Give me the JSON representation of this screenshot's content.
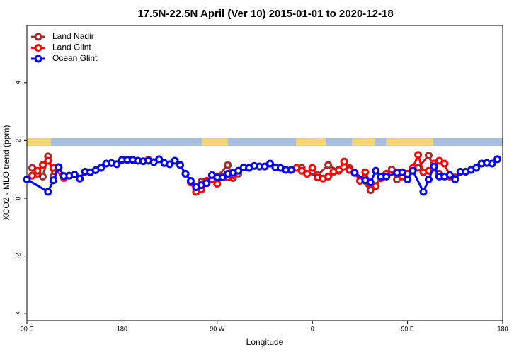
{
  "chart_data": {
    "type": "line",
    "title": "17.5N-22.5N April (Ver 10)   2015-01-01 to 2020-12-18",
    "x_label": "Longitude",
    "y_label": "XCO2 - MLO trend (ppm)",
    "xlim": [
      90,
      540
    ],
    "xticks": [
      {
        "value": 90,
        "label": "90 E"
      },
      180,
      {
        "value": 270,
        "label": "90 W"
      },
      {
        "value": 360,
        "label": "0"
      },
      {
        "value": 450,
        "label": "90 E"
      },
      {
        "value": 540,
        "label": "180"
      }
    ],
    "ylim": [
      -4.24,
      5.98
    ],
    "yticks": [
      -4,
      -2,
      0,
      2,
      4
    ],
    "grid": false,
    "legend": "topleft",
    "series": [
      {
        "name": "Land Nadir",
        "color": "#a52a2a",
        "x": [
          95,
          100,
          105,
          110,
          115,
          120,
          null,
          250,
          255,
          270,
          280,
          285,
          290,
          null,
          350,
          355,
          365,
          375,
          385,
          395,
          415,
          425,
          null,
          435,
          440,
          450,
          460,
          470,
          475,
          480
        ],
        "values": [
          1.05,
          0.85,
          0.75,
          1.45,
          0.75,
          1.05,
          null,
          0.35,
          0.58,
          0.75,
          1.15,
          0.7,
          0.85,
          null,
          1.05,
          0.85,
          0.8,
          1.15,
          0.95,
          1.05,
          0.28,
          0.7,
          null,
          1.0,
          0.65,
          0.85,
          1.05,
          1.48,
          1.05,
          0.85
        ]
      },
      {
        "name": "Land Glint",
        "color": "#ff0000",
        "x": [
          95,
          100,
          105,
          110,
          115,
          125,
          null,
          205,
          null,
          245,
          250,
          255,
          260,
          265,
          270,
          275,
          280,
          285,
          null,
          345,
          350,
          355,
          360,
          365,
          370,
          375,
          380,
          385,
          390,
          395,
          400,
          405,
          410,
          415,
          420,
          425,
          430,
          null,
          440,
          445,
          450,
          455,
          460,
          465,
          470,
          475,
          480,
          485,
          490,
          495
        ],
        "values": [
          0.78,
          0.95,
          1.15,
          1.3,
          1.05,
          0.7,
          null,
          1.33,
          null,
          0.55,
          0.22,
          0.3,
          0.6,
          0.65,
          0.5,
          0.75,
          0.72,
          0.8,
          null,
          1.05,
          0.95,
          0.85,
          1.05,
          0.72,
          0.68,
          0.75,
          0.92,
          0.98,
          1.27,
          0.98,
          0.88,
          0.6,
          0.9,
          0.5,
          0.42,
          0.7,
          0.85,
          null,
          0.9,
          0.75,
          0.85,
          1.05,
          1.5,
          0.9,
          0.95,
          1.2,
          1.3,
          1.2,
          0.75,
          0.72
        ]
      },
      {
        "name": "Ocean Glint",
        "color": "#0000ff",
        "x": [
          90,
          110,
          115,
          120,
          125,
          130,
          135,
          140,
          145,
          150,
          155,
          160,
          165,
          170,
          175,
          180,
          185,
          190,
          195,
          200,
          205,
          210,
          215,
          220,
          225,
          230,
          235,
          240,
          245,
          250,
          255,
          260,
          265,
          270,
          275,
          280,
          285,
          290,
          295,
          300,
          305,
          310,
          315,
          320,
          325,
          330,
          335,
          340,
          null,
          400,
          410,
          415,
          420,
          425,
          430,
          440,
          445,
          450,
          455,
          465,
          470,
          475,
          480,
          485,
          490,
          495,
          500,
          505,
          510,
          515,
          520,
          525,
          530,
          535
        ],
        "values": [
          0.65,
          0.22,
          0.62,
          1.08,
          0.77,
          0.78,
          0.82,
          0.68,
          0.92,
          0.9,
          0.97,
          1.05,
          1.2,
          1.22,
          1.18,
          1.33,
          1.33,
          1.33,
          1.3,
          1.28,
          1.3,
          1.25,
          1.35,
          1.22,
          1.18,
          1.3,
          1.15,
          0.85,
          0.6,
          0.38,
          0.45,
          0.52,
          0.8,
          0.72,
          0.72,
          0.85,
          0.88,
          0.95,
          1.07,
          1.05,
          1.12,
          1.1,
          1.1,
          1.2,
          1.07,
          1.05,
          0.98,
          0.98,
          null,
          0.88,
          0.62,
          0.55,
          0.95,
          0.75,
          0.75,
          0.88,
          0.9,
          0.65,
          0.95,
          0.22,
          0.65,
          1.1,
          0.75,
          0.75,
          0.8,
          0.65,
          0.92,
          0.92,
          0.98,
          1.05,
          1.2,
          1.22,
          1.2,
          1.35
        ]
      }
    ]
  }
}
